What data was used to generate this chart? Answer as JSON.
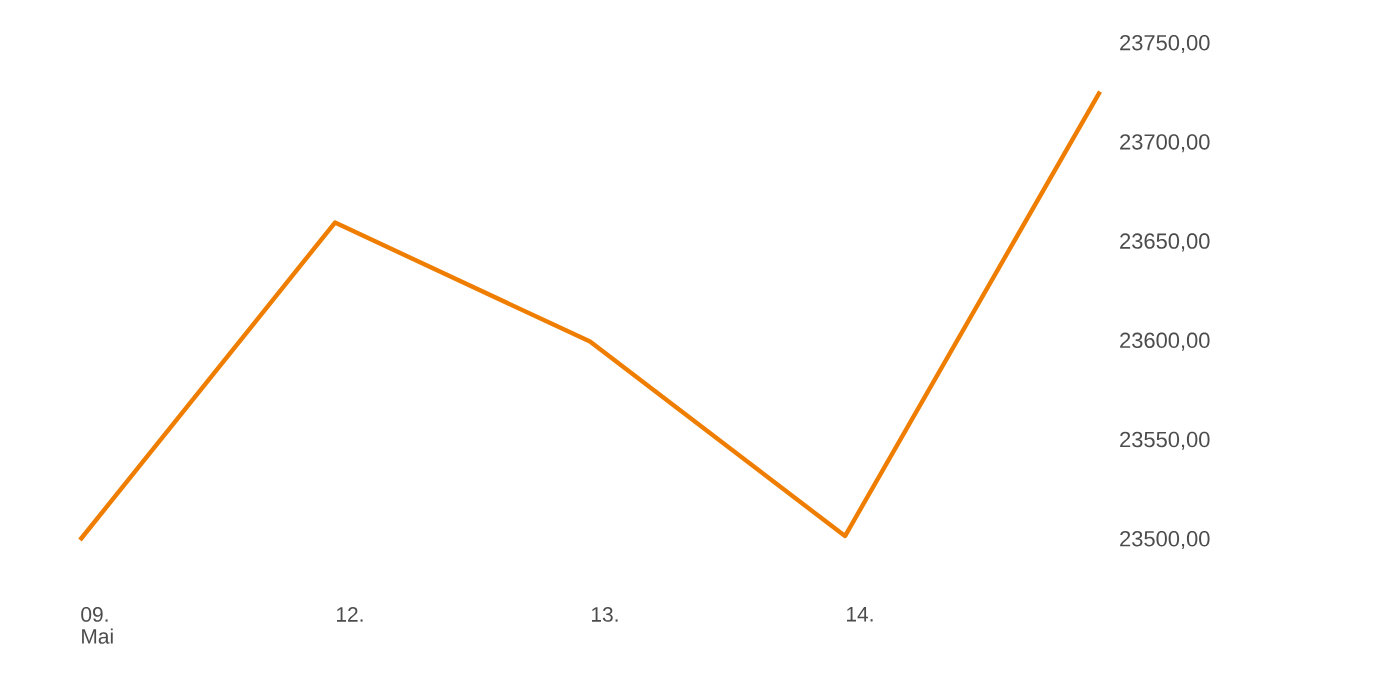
{
  "chart_data": {
    "type": "line",
    "categories": [
      "09. Mai",
      "12.",
      "13.",
      "14.",
      null
    ],
    "series": [
      {
        "color": "#ef7d00",
        "values": [
          23500,
          23660,
          23600,
          23502,
          23726
        ]
      }
    ],
    "ylim": [
      23500,
      23750
    ],
    "yticks": [
      {
        "value": 23500,
        "label": "23500,00"
      },
      {
        "value": 23550,
        "label": "23550,00"
      },
      {
        "value": 23600,
        "label": "23600,00"
      },
      {
        "value": 23650,
        "label": "23650,00"
      },
      {
        "value": 23700,
        "label": "23700,00"
      },
      {
        "value": 23750,
        "label": "23750,00"
      }
    ],
    "marker": "none",
    "line_style": "solid"
  }
}
